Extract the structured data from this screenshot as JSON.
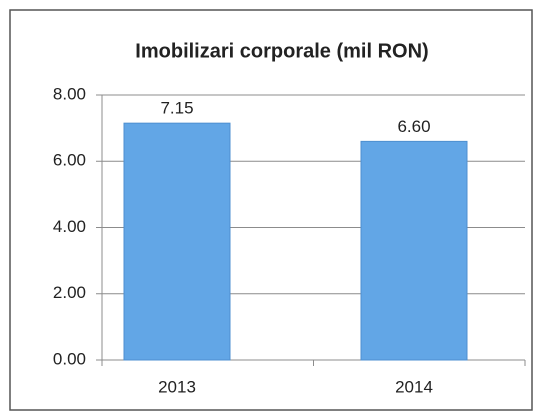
{
  "chart_data": {
    "type": "bar",
    "title": "Imobilizari corporale (mil RON)",
    "categories": [
      "2013",
      "2014"
    ],
    "values": [
      7.15,
      6.6
    ],
    "value_labels": [
      "7.15",
      "6.60"
    ],
    "color": "#62a6e6",
    "ylim": [
      0,
      8
    ],
    "yticks": [
      {
        "value": 0,
        "label": "0.00"
      },
      {
        "value": 2,
        "label": "2.00"
      },
      {
        "value": 4,
        "label": "4.00"
      },
      {
        "value": 6,
        "label": "6.00"
      },
      {
        "value": 8,
        "label": "8.00"
      }
    ],
    "grid": true
  }
}
